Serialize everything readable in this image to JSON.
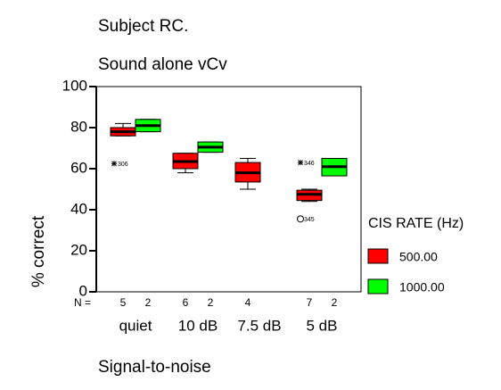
{
  "chart_data": {
    "type": "box",
    "title": "Subject RC.",
    "subtitle": "Sound alone vCv",
    "y_label": "% correct",
    "x_label": "Signal-to-noise",
    "n_label": "N =",
    "categories": [
      "quiet",
      "10 dB",
      "7.5 dB",
      "5 dB"
    ],
    "legend_title": "CIS RATE (Hz)",
    "ylim": [
      0,
      100
    ],
    "yticks": [
      0,
      20,
      40,
      60,
      80,
      100
    ],
    "grid": false,
    "series": [
      {
        "name": "500.00",
        "color": "#ff0000",
        "n": [
          5,
          6,
          4,
          7
        ],
        "boxes": [
          {
            "min": 76,
            "q1": 76,
            "median": 78,
            "q3": 80,
            "max": 82
          },
          {
            "min": 58,
            "q1": 60,
            "median": 63.5,
            "q3": 67.5,
            "max": 67.5
          },
          {
            "min": 50,
            "q1": 53.5,
            "median": 58,
            "q3": 63,
            "max": 65
          },
          {
            "min": 44,
            "q1": 44.5,
            "median": 47.5,
            "q3": 49.5,
            "max": 50
          }
        ],
        "outliers": [
          {
            "category": 0,
            "value": 62.5,
            "label": "306",
            "marker": "star"
          },
          {
            "category": 3,
            "value": 63,
            "label": "346",
            "marker": "star"
          },
          {
            "category": 3,
            "value": 35.5,
            "label": "345",
            "marker": "circle"
          }
        ]
      },
      {
        "name": "1000.00",
        "color": "#00ff00",
        "n": [
          2,
          2,
          null,
          2
        ],
        "boxes": [
          {
            "min": 78,
            "q1": 78,
            "median": 81,
            "q3": 84,
            "max": 84
          },
          {
            "min": 68,
            "q1": 68,
            "median": 70.5,
            "q3": 73,
            "max": 73
          },
          null,
          {
            "min": 56.5,
            "q1": 56.5,
            "median": 61,
            "q3": 65,
            "max": 65
          }
        ],
        "outliers": []
      }
    ]
  }
}
